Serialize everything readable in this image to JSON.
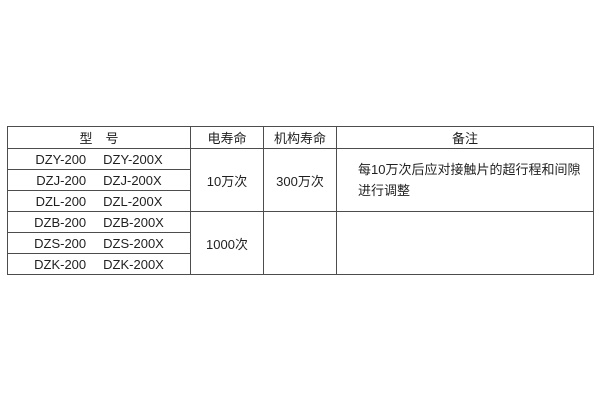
{
  "page": {
    "background_color": "#ffffff",
    "table_border_color": "#4d4d4d",
    "text_color": "#1f1f1f"
  },
  "table": {
    "headers": {
      "model": "型　号",
      "electrical_life": "电寿命",
      "mechanism_life": "机构寿命",
      "remarks": "备注"
    },
    "model_rows": [
      {
        "left": "DZY-200",
        "right": "DZY-200X"
      },
      {
        "left": "DZJ-200",
        "right": "DZJ-200X"
      },
      {
        "left": "DZL-200",
        "right": "DZL-200X"
      },
      {
        "left": "DZB-200",
        "right": "DZB-200X"
      },
      {
        "left": "DZS-200",
        "right": "DZS-200X"
      },
      {
        "left": "DZK-200",
        "right": "DZK-200X"
      }
    ],
    "groups": [
      {
        "electrical_life": "10万次",
        "mechanism_life": "300万次",
        "remarks_line1": "每10万次后应对接触片的超行程和间隙",
        "remarks_line2": "进行调整"
      },
      {
        "electrical_life": "1000次",
        "mechanism_life": "",
        "remarks_line1": "",
        "remarks_line2": ""
      }
    ]
  },
  "chart_data": {
    "type": "table",
    "columns": [
      "型号",
      "电寿命",
      "机构寿命",
      "备注"
    ],
    "rows": [
      [
        "DZY-200  DZY-200X",
        "10万次",
        "300万次",
        "每10万次后应对接触片的超行程和间隙进行调整"
      ],
      [
        "DZJ-200  DZJ-200X",
        "10万次",
        "300万次",
        "每10万次后应对接触片的超行程和间隙进行调整"
      ],
      [
        "DZL-200  DZL-200X",
        "10万次",
        "300万次",
        "每10万次后应对接触片的超行程和间隙进行调整"
      ],
      [
        "DZB-200  DZB-200X",
        "1000次",
        "",
        ""
      ],
      [
        "DZS-200  DZS-200X",
        "1000次",
        "",
        ""
      ],
      [
        "DZK-200  DZK-200X",
        "1000次",
        "",
        ""
      ]
    ]
  }
}
